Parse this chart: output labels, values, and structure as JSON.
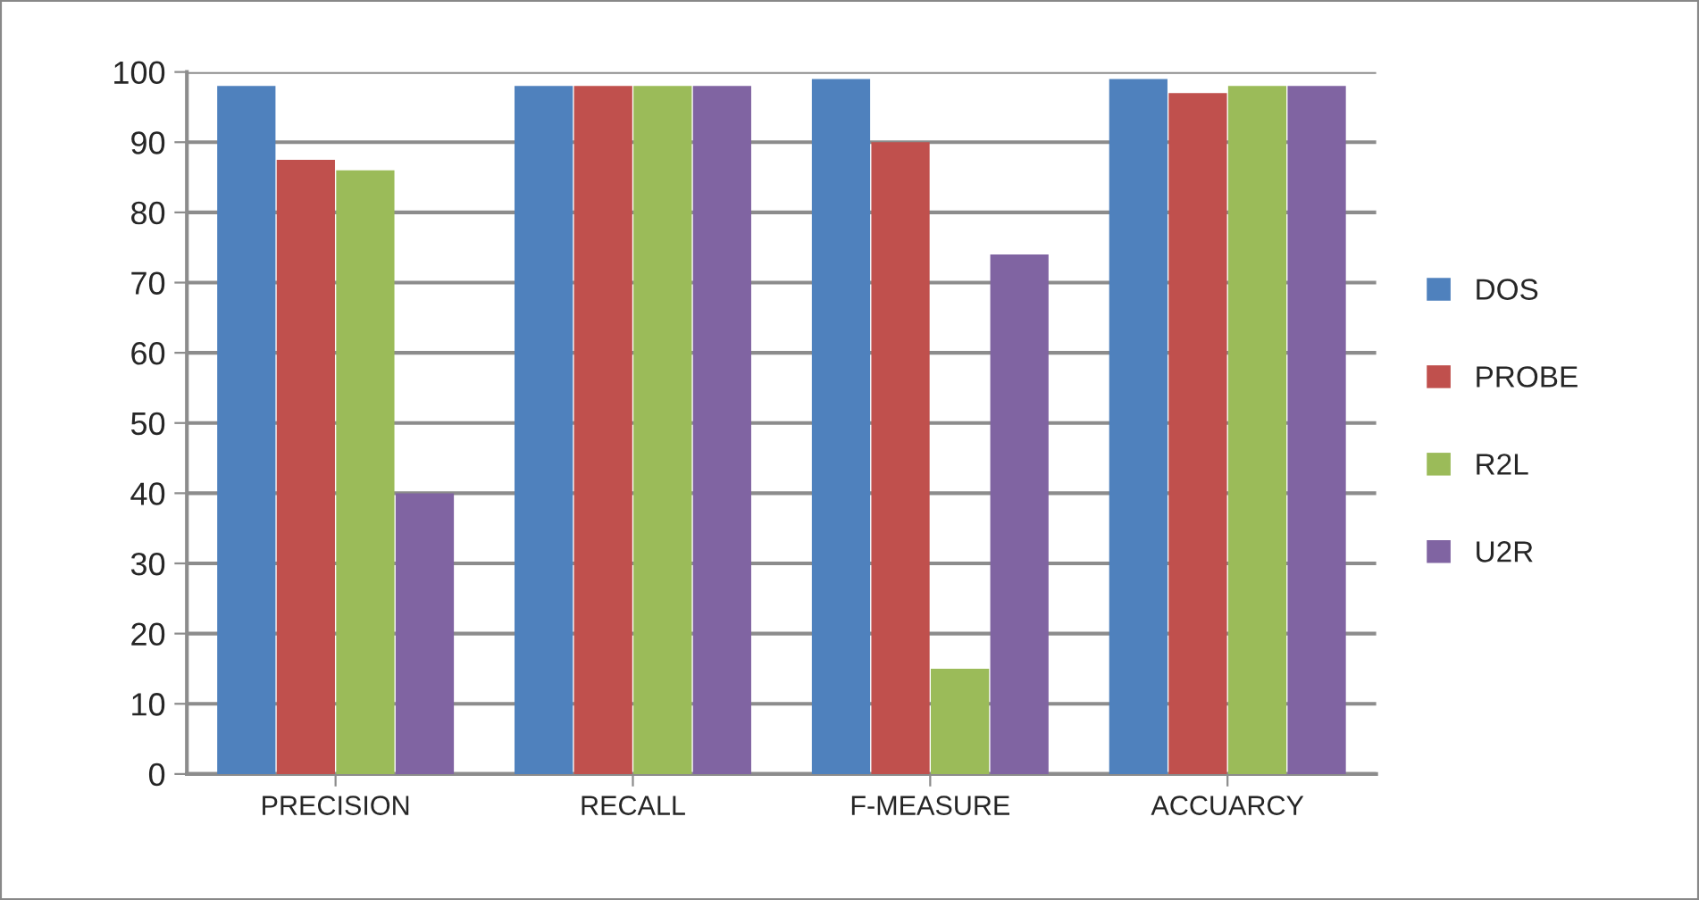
{
  "chart_data": {
    "type": "bar",
    "categories": [
      "PRECISION",
      "RECALL",
      "F-MEASURE",
      "ACCUARCY"
    ],
    "series": [
      {
        "name": "DOS",
        "color": "#4f81bd",
        "values": [
          98,
          98,
          99,
          99
        ]
      },
      {
        "name": "PROBE",
        "color": "#c0504d",
        "values": [
          87.5,
          98,
          90,
          97
        ]
      },
      {
        "name": "R2L",
        "color": "#9bbb59",
        "values": [
          86,
          98,
          15,
          98
        ]
      },
      {
        "name": "U2R",
        "color": "#8064a2",
        "values": [
          40,
          98,
          74,
          98
        ]
      }
    ],
    "ylim": [
      0,
      100
    ],
    "yticks": [
      0,
      10,
      20,
      30,
      40,
      50,
      60,
      70,
      80,
      90,
      100
    ],
    "grid": "y",
    "legend": "right"
  }
}
